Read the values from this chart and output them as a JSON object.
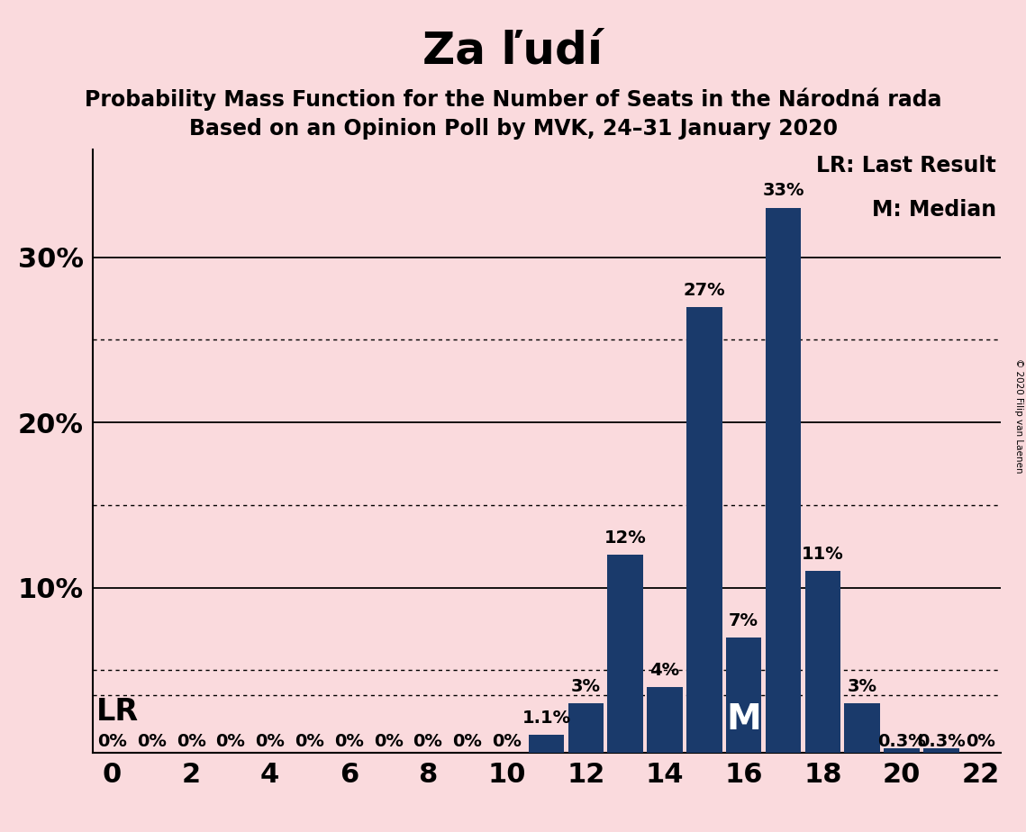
{
  "title": "Za ľudí",
  "subtitle1": "Probability Mass Function for the Number of Seats in the Národná rada",
  "subtitle2": "Based on an Opinion Poll by MVK, 24–31 January 2020",
  "copyright": "© 2020 Filip van Laenen",
  "background_color": "#fadadd",
  "bar_color": "#1a3a6b",
  "categories": [
    0,
    1,
    2,
    3,
    4,
    5,
    6,
    7,
    8,
    9,
    10,
    11,
    12,
    13,
    14,
    15,
    16,
    17,
    18,
    19,
    20,
    21,
    22
  ],
  "values": [
    0,
    0,
    0,
    0,
    0,
    0,
    0,
    0,
    0,
    0,
    0,
    1.1,
    3,
    12,
    4,
    27,
    7,
    33,
    11,
    3,
    0.3,
    0.3,
    0
  ],
  "label_texts": [
    "0%",
    "0%",
    "0%",
    "0%",
    "0%",
    "0%",
    "0%",
    "0%",
    "0%",
    "0%",
    "0%",
    "1.1%",
    "3%",
    "12%",
    "4%",
    "27%",
    "7%",
    "33%",
    "11%",
    "3%",
    "0.3%",
    "0.3%",
    "0%"
  ],
  "solid_gridlines": [
    10,
    20,
    30
  ],
  "dotted_gridlines": [
    5,
    15,
    25
  ],
  "lr_dotted_y": 3.5,
  "lr_label": "LR",
  "median_x": 16,
  "median_label": "M",
  "legend_text1": "LR: Last Result",
  "legend_text2": "M: Median",
  "xlim": [
    -0.5,
    22.5
  ],
  "ylim": [
    0,
    36.5
  ],
  "ytick_positions": [
    0,
    10,
    20,
    30
  ],
  "ytick_labels": [
    "",
    "10%",
    "20%",
    "30%"
  ],
  "title_fontsize": 36,
  "subtitle_fontsize": 17,
  "bar_label_fontsize": 14,
  "tick_fontsize": 22,
  "lr_fontsize": 24,
  "median_fontsize": 28,
  "legend_fontsize": 17
}
